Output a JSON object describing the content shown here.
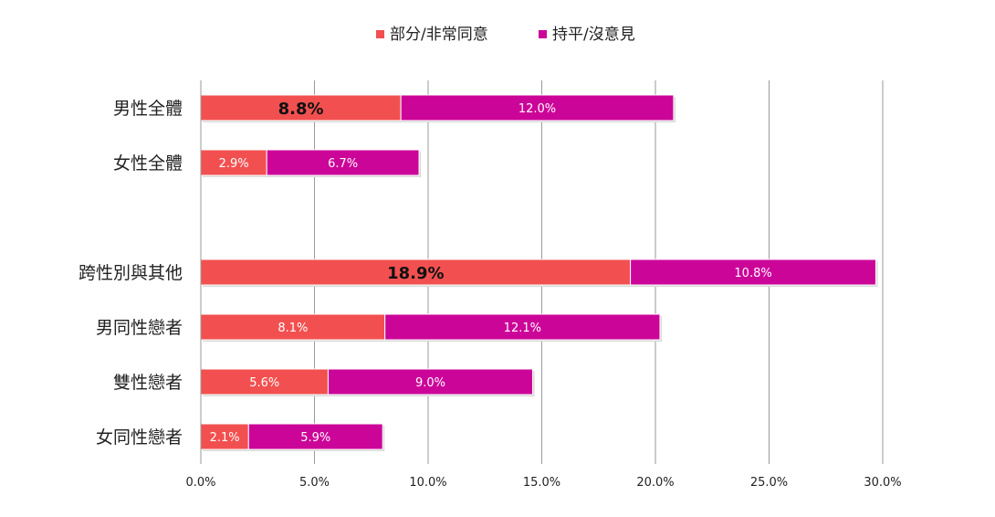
{
  "chart_data": {
    "type": "bar",
    "orientation": "horizontal",
    "stacked": true,
    "categories": [
      "男性全體",
      "女性全體",
      "",
      "跨性別與其他",
      "男同性戀者",
      "雙性戀者",
      "女同性戀者"
    ],
    "series": [
      {
        "name": "部分/非常同意",
        "color": "#f25050",
        "values": [
          8.8,
          2.9,
          null,
          18.9,
          8.1,
          5.6,
          2.1
        ],
        "labels": [
          "8.8%",
          "2.9%",
          "",
          "18.9%",
          "8.1%",
          "5.6%",
          "2.1%"
        ],
        "label_bold": [
          true,
          false,
          false,
          true,
          false,
          false,
          false
        ]
      },
      {
        "name": "持平/沒意見",
        "color": "#cc0599",
        "values": [
          12.0,
          6.7,
          null,
          10.8,
          12.1,
          9.0,
          5.9
        ],
        "labels": [
          "12.0%",
          "6.7%",
          "",
          "10.8%",
          "12.1%",
          "9.0%",
          "5.9%"
        ],
        "label_bold": [
          false,
          false,
          false,
          false,
          false,
          false,
          false
        ]
      }
    ],
    "x_ticks": [
      "0.0%",
      "5.0%",
      "10.0%",
      "15.0%",
      "20.0%",
      "25.0%",
      "30.0%"
    ],
    "xlim": [
      0,
      30
    ],
    "xlabel": "",
    "ylabel": "",
    "grid": "vertical",
    "legend": "top"
  }
}
